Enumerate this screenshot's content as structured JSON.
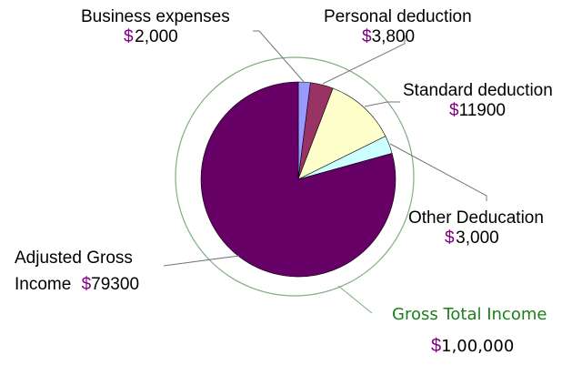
{
  "chart_data": {
    "type": "pie",
    "title": "",
    "total": {
      "label": "Gross Total Income",
      "currency": "$",
      "value_text": "1,00,000",
      "value": 100000
    },
    "start_angle_deg": 0,
    "direction": "clockwise",
    "slices": [
      {
        "label": "Business expenses",
        "currency": "$",
        "value_text": "2,000",
        "value": 2000,
        "color": "#9999ff"
      },
      {
        "label": "Personal deduction",
        "currency": "$",
        "value_text": "3,800",
        "value": 3800,
        "color": "#993366"
      },
      {
        "label": "Standard deduction",
        "currency": "$",
        "value_text": "11900",
        "value": 11900,
        "color": "#ffffcc"
      },
      {
        "label": "Other Deducation",
        "currency": "$",
        "value_text": "3,000",
        "value": 3000,
        "color": "#ccffff"
      },
      {
        "label": "Adjusted Gross Income",
        "label_line1": "Adjusted Gross",
        "label_line2": "Income",
        "currency": "$",
        "value_text": "79300",
        "value": 79300,
        "color": "#660066"
      }
    ],
    "legend": "none",
    "data_labels": "outside with leader lines"
  },
  "colors": {
    "currency": "#800080",
    "total_label": "#1a7f1a",
    "ring": "#7fae7f",
    "leader": "#777777",
    "slice_border": "#000000"
  }
}
